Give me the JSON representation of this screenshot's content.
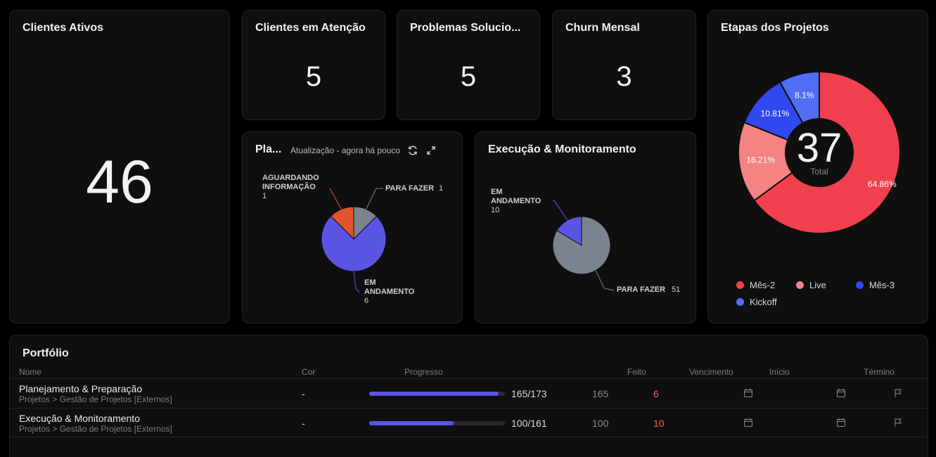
{
  "cards": {
    "clientes_ativos": {
      "title": "Clientes Ativos",
      "value": "46"
    },
    "clientes_atencao": {
      "title": "Clientes em Atenção",
      "value": "5"
    },
    "problemas": {
      "title": "Problemas Solucio...",
      "value": "5"
    },
    "churn": {
      "title": "Churn Mensal",
      "value": "3"
    }
  },
  "planejamento": {
    "title": "Pla...",
    "update_text": "Atualização - agora há pouco",
    "icons": [
      "refresh-icon",
      "expand-icon"
    ]
  },
  "execucao": {
    "title": "Execução & Monitoramento"
  },
  "etapas": {
    "title": "Etapas dos Projetos",
    "total": "37",
    "total_label": "Total",
    "legend": [
      {
        "label": "Mês-2",
        "color": "#f0404e"
      },
      {
        "label": "Live",
        "color": "#f58383"
      },
      {
        "label": "Mês-3",
        "color": "#2f48f0"
      },
      {
        "label": "Kickoff",
        "color": "#4f6ef5"
      }
    ]
  },
  "chart_data": [
    {
      "type": "pie",
      "chart": "planejamento",
      "slices": [
        {
          "label": "AGUARDANDO INFORMAÇÃO",
          "label_lines": [
            "AGUARDANDO",
            "INFORMAÇÃO"
          ],
          "value": 1,
          "color": "#e0552e"
        },
        {
          "label": "PARA FAZER",
          "label_lines": [
            "PARA FAZER"
          ],
          "value": 1,
          "color": "#7b848e"
        },
        {
          "label": "EM ANDAMENTO",
          "label_lines": [
            "EM",
            "ANDAMENTO"
          ],
          "value": 6,
          "color": "#5b55e6"
        }
      ]
    },
    {
      "type": "pie",
      "chart": "execucao",
      "slices": [
        {
          "label": "EM ANDAMENTO",
          "label_lines": [
            "EM",
            "ANDAMENTO"
          ],
          "value": 10,
          "color": "#5b55e6"
        },
        {
          "label": "PARA FAZER",
          "label_lines": [
            "PARA FAZER"
          ],
          "value": 51,
          "color": "#7b848e"
        }
      ]
    },
    {
      "type": "pie",
      "chart": "etapas",
      "donut": true,
      "slices": [
        {
          "label": "Mês-2",
          "value": 64.86,
          "text": "64.86%",
          "color": "#f0404e"
        },
        {
          "label": "Live",
          "value": 16.21,
          "text": "16.21%",
          "color": "#f58383"
        },
        {
          "label": "Mês-3",
          "value": 10.81,
          "text": "10.81%",
          "color": "#2f48f0"
        },
        {
          "label": "Kickoff",
          "value": 8.1,
          "text": "8.1%",
          "color": "#4f6ef5"
        }
      ]
    }
  ],
  "portfolio": {
    "title": "Portfólio",
    "columns": [
      "Nome",
      "Cor",
      "Progresso",
      "Feito",
      "Vencimento",
      "Início",
      "Término"
    ],
    "rows": [
      {
        "name": "Planejamento & Preparação",
        "path": "Projetos > Gestão de Projetos [Externos]",
        "cor": "-",
        "progress_label": "165/173",
        "progress": 0.954,
        "feito": "165",
        "open": "6"
      },
      {
        "name": "Execução & Monitoramento",
        "path": "Projetos > Gestão de Projetos [Externos]",
        "cor": "-",
        "progress_label": "100/161",
        "progress": 0.621,
        "feito": "100",
        "open": "10"
      }
    ]
  }
}
